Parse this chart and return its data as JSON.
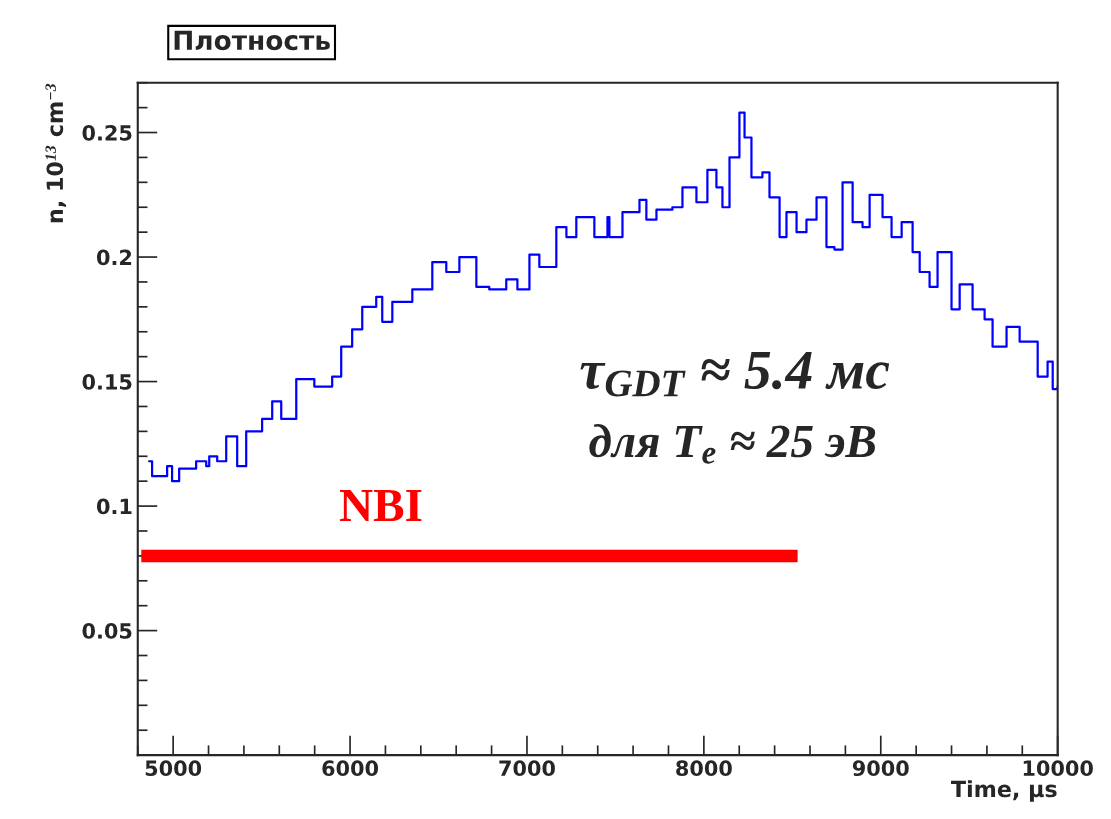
{
  "chart_data": {
    "type": "step",
    "title": "Плотность",
    "xlabel": "Time, μs",
    "ylabel": "n, 10$^{13}$ cm$^{−3}$",
    "xlim": [
      4800,
      10000
    ],
    "xticks": [
      5000,
      6000,
      7000,
      8000,
      9000,
      10000
    ],
    "ylim": [
      0,
      0.27
    ],
    "yticks": [
      0.05,
      0.1,
      0.15,
      0.2,
      0.25
    ],
    "grid": false,
    "legend": false,
    "annotations": [
      "τ$_{GDT}$ ≈ 5.4 мс",
      "для T$_{e}$ ≈ 25 эВ"
    ],
    "series": [
      {
        "color": "#0000ff",
        "x": [
          4864,
          4881,
          4966,
          4994,
          5034,
          5130,
          5187,
          5204,
          5249,
          5300,
          5362,
          5413,
          5503,
          5560,
          5611,
          5696,
          5798,
          5899,
          5950,
          6012,
          6069,
          6148,
          6182,
          6239,
          6352,
          6465,
          6544,
          6618,
          6714,
          6787,
          6883,
          6946,
          7014,
          7070,
          7166,
          7223,
          7279,
          7381,
          7455,
          7466,
          7540,
          7636,
          7675,
          7732,
          7822,
          7879,
          7958,
          8020,
          8071,
          8105,
          8145,
          8201,
          8230,
          8269,
          8331,
          8371,
          8428,
          8467,
          8524,
          8580,
          8637,
          8693,
          8738,
          8784,
          8841,
          8897,
          8937,
          9010,
          9061,
          9118,
          9180,
          9220,
          9276,
          9321,
          9400,
          9446,
          9519,
          9587,
          9632,
          9711,
          9785,
          9842,
          9887,
          9943,
          9972,
          10000
        ],
        "values": [
          0.118,
          0.112,
          0.116,
          0.11,
          0.115,
          0.118,
          0.116,
          0.12,
          0.118,
          0.128,
          0.116,
          0.13,
          0.135,
          0.142,
          0.135,
          0.151,
          0.148,
          0.152,
          0.164,
          0.171,
          0.18,
          0.184,
          0.174,
          0.182,
          0.187,
          0.198,
          0.194,
          0.2,
          0.188,
          0.187,
          0.191,
          0.187,
          0.201,
          0.196,
          0.212,
          0.208,
          0.216,
          0.208,
          0.216,
          0.208,
          0.218,
          0.223,
          0.215,
          0.219,
          0.22,
          0.228,
          0.222,
          0.235,
          0.228,
          0.22,
          0.24,
          0.258,
          0.248,
          0.232,
          0.234,
          0.224,
          0.208,
          0.218,
          0.21,
          0.215,
          0.224,
          0.204,
          0.203,
          0.23,
          0.214,
          0.212,
          0.225,
          0.216,
          0.208,
          0.214,
          0.202,
          0.194,
          0.188,
          0.202,
          0.179,
          0.189,
          0.179,
          0.175,
          0.164,
          0.172,
          0.166,
          0.166,
          0.152,
          0.158,
          0.147,
          0.148
        ]
      },
      {
        "name": "NBI",
        "type": "line",
        "color": "#ff0000",
        "x": [
          4820,
          8530
        ],
        "values": [
          0.08,
          0.08
        ]
      }
    ]
  }
}
